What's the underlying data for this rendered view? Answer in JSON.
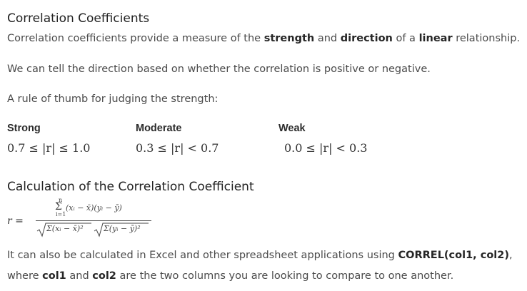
{
  "heading1": "Correlation Coefficients",
  "para1": {
    "t1": "Correlation coefficients provide a measure of the ",
    "b1": "strength",
    "t2": " and ",
    "b2": "direction",
    "t3": " of a ",
    "b3": "linear",
    "t4": " relationship."
  },
  "para2": "We can tell the direction based on whether the correlation is positive or negative.",
  "para3": "A rule of thumb for judging the strength:",
  "strength_table": [
    {
      "label": "Strong",
      "range": "0.7 ≤ |r| ≤ 1.0"
    },
    {
      "label": "Moderate",
      "range": "0.3 ≤ |r| < 0.7"
    },
    {
      "label": "Weak",
      "range": "0.0 ≤ |r| < 0.3"
    }
  ],
  "heading2": "Calculation of the Correlation Coefficient",
  "formula": {
    "lhs": "r =",
    "sum_upper": "n",
    "sum_lower": "i=1",
    "numerator": "(xᵢ − x̄)(yᵢ − ȳ)",
    "denominator_left": "Σ(xᵢ − x̄)²",
    "denominator_right": "Σ(yᵢ − ȳ)²"
  },
  "para4": {
    "t1": "It can also be calculated in Excel and other spreadsheet applications using ",
    "b1": "CORREL(col1, col2)",
    "t2": ",",
    "t3": "where ",
    "b2": "col1",
    "t4": " and ",
    "b3": "col2",
    "t5": " are the two columns you are looking to compare to one another."
  }
}
